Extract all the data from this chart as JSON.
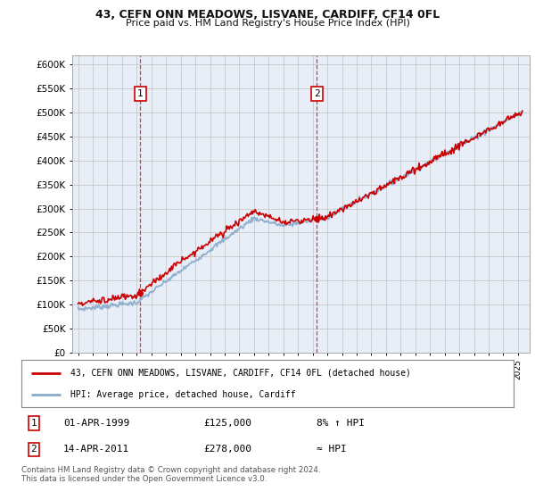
{
  "title": "43, CEFN ONN MEADOWS, LISVANE, CARDIFF, CF14 0FL",
  "subtitle": "Price paid vs. HM Land Registry's House Price Index (HPI)",
  "legend_line1": "43, CEFN ONN MEADOWS, LISVANE, CARDIFF, CF14 0FL (detached house)",
  "legend_line2": "HPI: Average price, detached house, Cardiff",
  "table_row1_date": "01-APR-1999",
  "table_row1_price": "£125,000",
  "table_row1_rel": "8% ↑ HPI",
  "table_row2_date": "14-APR-2011",
  "table_row2_price": "£278,000",
  "table_row2_rel": "≈ HPI",
  "footnote": "Contains HM Land Registry data © Crown copyright and database right 2024.\nThis data is licensed under the Open Government Licence v3.0.",
  "vline1_x": 1999.25,
  "vline2_x": 2011.29,
  "marker1_x": 1999.25,
  "marker1_y": 125000,
  "marker2_x": 2011.29,
  "marker2_y": 278000,
  "ylim": [
    0,
    620000
  ],
  "xlim_start": 1994.6,
  "xlim_end": 2025.8,
  "plot_bg": "#e8eef8",
  "grid_color": "#c8c8c8",
  "line_color_red": "#cc0000",
  "line_color_blue": "#88aacc",
  "vline_color": "#ee3333",
  "marker_color": "#cc0000",
  "yticks": [
    0,
    50000,
    100000,
    150000,
    200000,
    250000,
    300000,
    350000,
    400000,
    450000,
    500000,
    550000,
    600000
  ],
  "ytick_labels": [
    "£0",
    "£50K",
    "£100K",
    "£150K",
    "£200K",
    "£250K",
    "£300K",
    "£350K",
    "£400K",
    "£450K",
    "£500K",
    "£550K",
    "£600K"
  ]
}
